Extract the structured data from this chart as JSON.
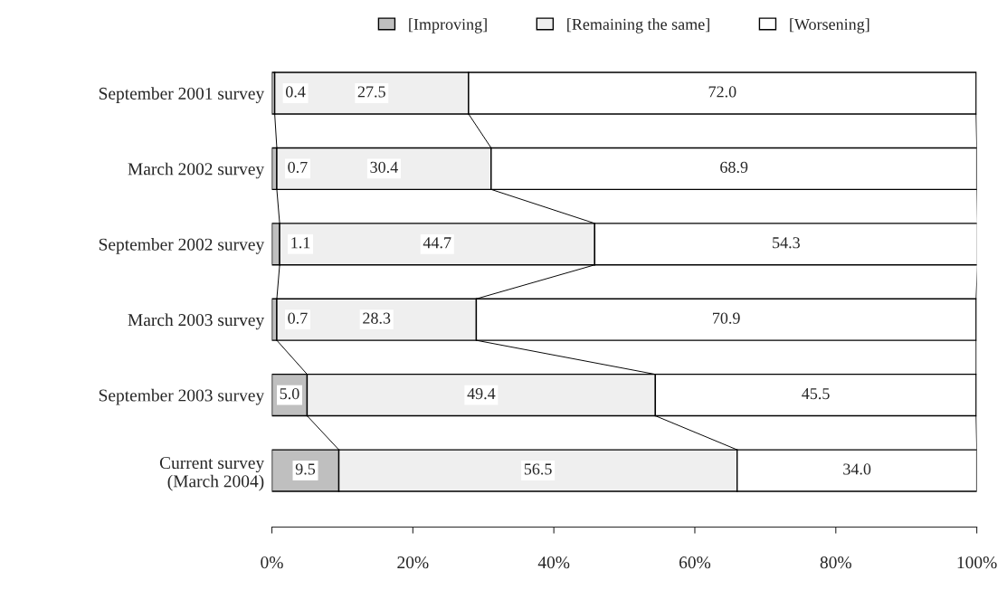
{
  "chart_data": {
    "type": "bar",
    "orientation": "horizontal",
    "stacked": true,
    "categories": [
      "September 2001 survey",
      "March 2002 survey",
      "September 2002 survey",
      "March 2003 survey",
      "September 2003 survey",
      "Current survey\n(March 2004)"
    ],
    "series": [
      {
        "name": "[Improving]",
        "color": "#bfbfbf",
        "values": [
          0.4,
          0.7,
          1.1,
          0.7,
          5.0,
          9.5
        ],
        "value_labels": [
          "0.4",
          "0.7",
          "1.1",
          "0.7",
          "5.0",
          "9.5"
        ]
      },
      {
        "name": "[Remaining the same]",
        "color": "#efefef",
        "values": [
          27.5,
          30.4,
          44.7,
          28.3,
          49.4,
          56.5
        ],
        "value_labels": [
          "27.5",
          "30.4",
          "44.7",
          "28.3",
          "49.4",
          "56.5"
        ]
      },
      {
        "name": "[Worsening]",
        "color": "#ffffff",
        "values": [
          72.0,
          68.9,
          54.3,
          70.9,
          45.5,
          34.0
        ],
        "value_labels": [
          "72.0",
          "68.9",
          "54.3",
          "70.9",
          "45.5",
          "34.0"
        ]
      }
    ],
    "xlim": [
      0,
      100
    ],
    "xticks": [
      {
        "value": 0,
        "label": "0%"
      },
      {
        "value": 20,
        "label": "20%"
      },
      {
        "value": 40,
        "label": "40%"
      },
      {
        "value": 60,
        "label": "60%"
      },
      {
        "value": 80,
        "label": "80%"
      },
      {
        "value": 100,
        "label": "100%"
      }
    ],
    "legend": "top",
    "grid": false
  }
}
